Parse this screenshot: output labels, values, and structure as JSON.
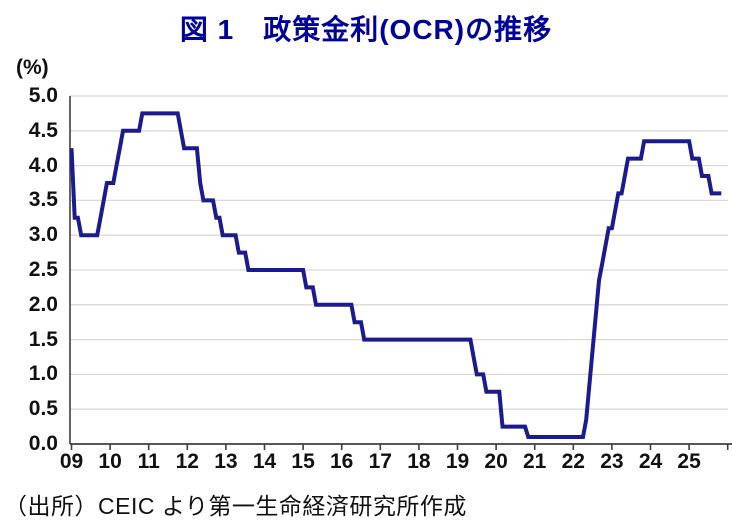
{
  "title": "図 1　政策金利(OCR)の推移",
  "source": "（出所）CEIC より第一生命経済研究所作成",
  "colors": {
    "title": "#00009b",
    "line": "#1b1b8f",
    "grid": "#d9d9d9",
    "axis": "#3f3f3f",
    "text": "#111111"
  },
  "chart_data": {
    "type": "line",
    "title": "図 1　政策金利(OCR)の推移",
    "ylabel": "(%)",
    "xlabel": "",
    "ylim": [
      0.0,
      5.0
    ],
    "grid": "horizontal-only",
    "legend": "none",
    "y_tick_labels": [
      "5.0",
      "4.5",
      "4.0",
      "3.5",
      "3.0",
      "2.5",
      "2.0",
      "1.5",
      "1.0",
      "0.5",
      "0.0"
    ],
    "x_tick_labels": [
      "09",
      "10",
      "11",
      "12",
      "13",
      "14",
      "15",
      "16",
      "17",
      "18",
      "19",
      "20",
      "21",
      "22",
      "23",
      "24",
      "25"
    ],
    "x_range_years": [
      2009.0,
      2026.0
    ],
    "series": [
      {
        "name": "政策金利(OCR)",
        "frequency": "monthly",
        "start": "2009-01",
        "end": "2025-11",
        "monthly": [
          {
            "year": 2009,
            "values": [
              4.25,
              3.25,
              3.25,
              3.0,
              3.0,
              3.0,
              3.0,
              3.0,
              3.0,
              3.25,
              3.5,
              3.75
            ]
          },
          {
            "year": 2010,
            "values": [
              3.75,
              3.75,
              4.0,
              4.25,
              4.5,
              4.5,
              4.5,
              4.5,
              4.5,
              4.5,
              4.75,
              4.75
            ]
          },
          {
            "year": 2011,
            "values": [
              4.75,
              4.75,
              4.75,
              4.75,
              4.75,
              4.75,
              4.75,
              4.75,
              4.75,
              4.75,
              4.5,
              4.25
            ]
          },
          {
            "year": 2012,
            "values": [
              4.25,
              4.25,
              4.25,
              4.25,
              3.75,
              3.5,
              3.5,
              3.5,
              3.5,
              3.25,
              3.25,
              3.0
            ]
          },
          {
            "year": 2013,
            "values": [
              3.0,
              3.0,
              3.0,
              3.0,
              2.75,
              2.75,
              2.75,
              2.5,
              2.5,
              2.5,
              2.5,
              2.5
            ]
          },
          {
            "year": 2014,
            "values": [
              2.5,
              2.5,
              2.5,
              2.5,
              2.5,
              2.5,
              2.5,
              2.5,
              2.5,
              2.5,
              2.5,
              2.5
            ]
          },
          {
            "year": 2015,
            "values": [
              2.5,
              2.25,
              2.25,
              2.25,
              2.0,
              2.0,
              2.0,
              2.0,
              2.0,
              2.0,
              2.0,
              2.0
            ]
          },
          {
            "year": 2016,
            "values": [
              2.0,
              2.0,
              2.0,
              2.0,
              1.75,
              1.75,
              1.75,
              1.5,
              1.5,
              1.5,
              1.5,
              1.5
            ]
          },
          {
            "year": 2017,
            "values": [
              1.5,
              1.5,
              1.5,
              1.5,
              1.5,
              1.5,
              1.5,
              1.5,
              1.5,
              1.5,
              1.5,
              1.5
            ]
          },
          {
            "year": 2018,
            "values": [
              1.5,
              1.5,
              1.5,
              1.5,
              1.5,
              1.5,
              1.5,
              1.5,
              1.5,
              1.5,
              1.5,
              1.5
            ]
          },
          {
            "year": 2019,
            "values": [
              1.5,
              1.5,
              1.5,
              1.5,
              1.5,
              1.25,
              1.0,
              1.0,
              1.0,
              0.75,
              0.75,
              0.75
            ]
          },
          {
            "year": 2020,
            "values": [
              0.75,
              0.75,
              0.25,
              0.25,
              0.25,
              0.25,
              0.25,
              0.25,
              0.25,
              0.25,
              0.1,
              0.1
            ]
          },
          {
            "year": 2021,
            "values": [
              0.1,
              0.1,
              0.1,
              0.1,
              0.1,
              0.1,
              0.1,
              0.1,
              0.1,
              0.1,
              0.1,
              0.1
            ]
          },
          {
            "year": 2022,
            "values": [
              0.1,
              0.1,
              0.1,
              0.1,
              0.35,
              0.85,
              1.35,
              1.85,
              2.35,
              2.6,
              2.85,
              3.1
            ]
          },
          {
            "year": 2023,
            "values": [
              3.1,
              3.35,
              3.6,
              3.6,
              3.85,
              4.1,
              4.1,
              4.1,
              4.1,
              4.1,
              4.35,
              4.35
            ]
          },
          {
            "year": 2024,
            "values": [
              4.35,
              4.35,
              4.35,
              4.35,
              4.35,
              4.35,
              4.35,
              4.35,
              4.35,
              4.35,
              4.35,
              4.35
            ]
          },
          {
            "year": 2025,
            "values": [
              4.35,
              4.1,
              4.1,
              4.1,
              3.85,
              3.85,
              3.85,
              3.6,
              3.6,
              3.6,
              3.6
            ]
          }
        ]
      }
    ]
  }
}
